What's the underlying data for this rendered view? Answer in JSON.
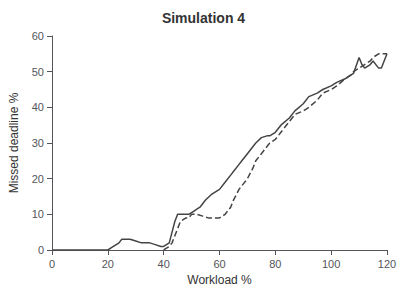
{
  "chart_data": {
    "type": "line",
    "title": "Simulation 4",
    "xlabel": "Workload %",
    "ylabel": "Missed deadline %",
    "xlim": [
      0,
      120
    ],
    "ylim": [
      0,
      60
    ],
    "xticks": [
      0,
      20,
      40,
      60,
      80,
      100,
      120
    ],
    "yticks": [
      0,
      10,
      20,
      30,
      40,
      50,
      60
    ],
    "grid": false,
    "series": [
      {
        "color": "#444444",
        "line_style": "solid",
        "x": [
          0,
          20,
          21,
          22,
          24,
          25,
          27,
          28,
          30,
          32,
          35,
          37,
          39,
          40,
          41,
          42,
          43,
          44,
          45,
          46,
          47,
          48,
          49,
          50,
          51,
          52,
          53,
          55,
          57,
          58,
          60,
          62,
          64,
          65,
          67,
          68,
          70,
          72,
          73,
          75,
          77,
          78,
          80,
          82,
          85,
          87,
          90,
          92,
          95,
          97,
          100,
          102,
          105,
          107,
          108,
          110,
          111,
          112,
          114,
          115,
          117,
          118,
          120
        ],
        "values": [
          0,
          0,
          0.5,
          1,
          2,
          3,
          3,
          3,
          2.5,
          2,
          2,
          1.5,
          1,
          1,
          1.5,
          2,
          5,
          8,
          10,
          10,
          10,
          10,
          10,
          10.5,
          11,
          11.5,
          12,
          14,
          15.5,
          16,
          17,
          19,
          21,
          22,
          24,
          25,
          27,
          29,
          30,
          31.5,
          32,
          32,
          33,
          35,
          37,
          39,
          41,
          43,
          44,
          45,
          46,
          47,
          48,
          49,
          49.5,
          54,
          52,
          51,
          52,
          53,
          51,
          51,
          55
        ]
      },
      {
        "color": "#444444",
        "line_style": "dashed",
        "x": [
          40,
          41,
          42,
          43,
          44,
          45,
          46,
          47,
          48,
          49,
          50,
          51,
          52,
          54,
          56,
          58,
          60,
          62,
          64,
          65,
          67,
          68,
          70,
          72,
          73,
          75,
          77,
          78,
          80,
          82,
          85,
          87,
          90,
          92,
          95,
          97,
          100,
          102,
          105,
          107,
          108,
          110,
          112,
          114,
          115,
          117,
          118,
          120
        ],
        "values": [
          0,
          0.5,
          1,
          2,
          4,
          6,
          8,
          8.5,
          9,
          9,
          10,
          10,
          10,
          9.5,
          9,
          9,
          9,
          10,
          12,
          14,
          17,
          18,
          20,
          23,
          25,
          27,
          29,
          30,
          31,
          33,
          36,
          38,
          39,
          40,
          42,
          44,
          45,
          46,
          48,
          49,
          50,
          51,
          52,
          53,
          54,
          55,
          55,
          55
        ]
      }
    ]
  }
}
